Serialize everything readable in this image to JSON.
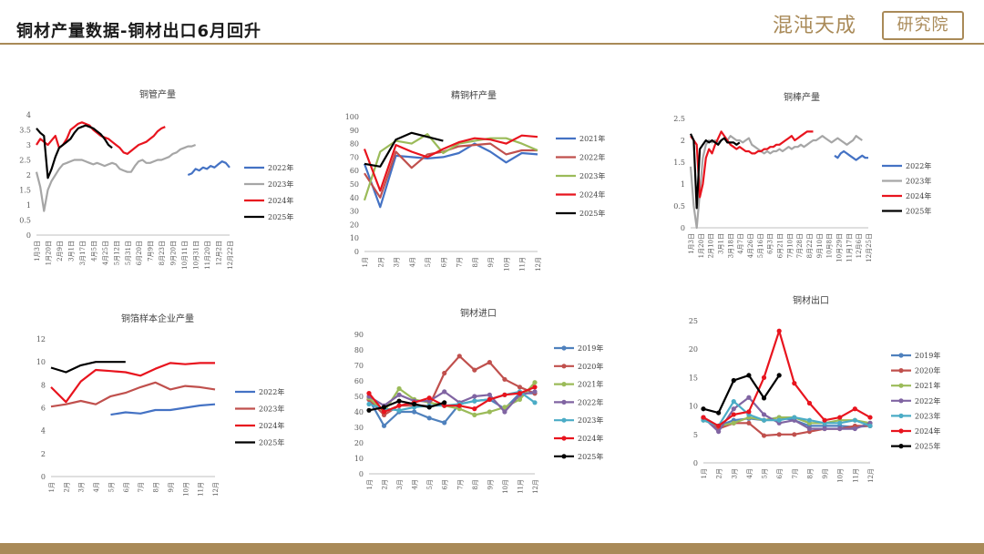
{
  "header": {
    "title": "铜材产量数据-铜材出口6月回升"
  },
  "logo": {
    "left_text": "混沌天成",
    "right_text": "研究院",
    "color": "#a98a58"
  },
  "chart_data": [
    {
      "id": "c1",
      "type": "line",
      "title": "铜管产量",
      "ylim": [
        0,
        4
      ],
      "yticks": [
        "0",
        "0.5",
        "1",
        "1.5",
        "2",
        "2.5",
        "3",
        "3.5",
        "4"
      ],
      "xlabels": [
        "1月3日",
        "1月20日",
        "2月9日",
        "3月1日",
        "3月17日",
        "4月5日",
        "4月25日",
        "5月12日",
        "5月31日",
        "6月20日",
        "7月9日",
        "8月23日",
        "9月20日",
        "10月11日",
        "10月31日",
        "11月20日",
        "12月2日",
        "12月22日"
      ],
      "legend": {
        "position": "right"
      },
      "series": [
        {
          "name": "2022年",
          "color": "#4472c4",
          "values": [
            null,
            null,
            null,
            null,
            null,
            null,
            null,
            null,
            null,
            null,
            null,
            null,
            null,
            null,
            null,
            null,
            null,
            null,
            null,
            null,
            null,
            null,
            null,
            null,
            null,
            null,
            null,
            null,
            null,
            null,
            null,
            null,
            null,
            null,
            null,
            null,
            null,
            null,
            null,
            null,
            2.0,
            2.05,
            2.2,
            2.15,
            2.25,
            2.2,
            2.3,
            2.25,
            2.35,
            2.45,
            2.4,
            2.25
          ]
        },
        {
          "name": "2023年",
          "color": "#a6a6a6",
          "values": [
            2.1,
            1.6,
            0.8,
            1.5,
            1.8,
            2.0,
            2.2,
            2.35,
            2.4,
            2.45,
            2.5,
            2.5,
            2.5,
            2.45,
            2.4,
            2.35,
            2.4,
            2.35,
            2.3,
            2.35,
            2.4,
            2.35,
            2.2,
            2.15,
            2.1,
            2.1,
            2.3,
            2.45,
            2.5,
            2.4,
            2.4,
            2.45,
            2.5,
            2.5,
            2.55,
            2.6,
            2.7,
            2.75,
            2.85,
            2.9,
            2.95,
            2.95,
            3.0
          ]
        },
        {
          "name": "2024年",
          "color": "#e8141e",
          "values": [
            3.0,
            3.2,
            3.1,
            3.0,
            3.15,
            3.3,
            2.9,
            3.0,
            3.2,
            3.5,
            3.6,
            3.7,
            3.75,
            3.7,
            3.65,
            3.5,
            3.4,
            3.3,
            3.25,
            3.2,
            3.1,
            3.0,
            2.9,
            2.75,
            2.7,
            2.8,
            2.9,
            3.0,
            3.05,
            3.1,
            3.2,
            3.3,
            3.45,
            3.55,
            3.6
          ]
        },
        {
          "name": "2025年",
          "color": "#000000",
          "values": [
            3.55,
            3.4,
            3.3,
            1.9,
            2.2,
            2.6,
            2.9,
            3.0,
            3.1,
            3.2,
            3.4,
            3.55,
            3.6,
            3.65,
            3.6,
            3.55,
            3.45,
            3.35,
            3.2,
            3.0,
            2.9
          ]
        }
      ]
    },
    {
      "id": "c2",
      "type": "line",
      "title": "精铜杆产量",
      "ylim": [
        0,
        100
      ],
      "yticks": [
        "0",
        "10",
        "20",
        "30",
        "40",
        "50",
        "60",
        "70",
        "80",
        "90",
        "100"
      ],
      "xlabels": [
        "1月",
        "2月",
        "3月",
        "4月",
        "5月",
        "6月",
        "7月",
        "8月",
        "9月",
        "10月",
        "11月",
        "12月"
      ],
      "legend": {
        "position": "right"
      },
      "series": [
        {
          "name": "2021年",
          "color": "#4472c4",
          "values": [
            65,
            33,
            71,
            70,
            69,
            70,
            73,
            80,
            74,
            66,
            73,
            72
          ]
        },
        {
          "name": "2022年",
          "color": "#c0504d",
          "values": [
            58,
            40,
            74,
            62,
            72,
            74,
            78,
            79,
            80,
            72,
            75,
            75
          ]
        },
        {
          "name": "2023年",
          "color": "#9bbb59",
          "values": [
            38,
            74,
            82,
            80,
            87,
            73,
            80,
            82,
            84,
            84,
            80,
            75
          ]
        },
        {
          "name": "2024年",
          "color": "#e8141e",
          "values": [
            76,
            45,
            79,
            74,
            70,
            76,
            81,
            84,
            83,
            80,
            86,
            85
          ]
        },
        {
          "name": "2025年",
          "color": "#000000",
          "values": [
            65,
            63,
            83,
            88,
            85,
            82
          ]
        }
      ]
    },
    {
      "id": "c3",
      "type": "line",
      "title": "铜棒产量",
      "ylim": [
        0,
        2.5
      ],
      "yticks": [
        "0",
        "0.5",
        "1",
        "1.5",
        "2",
        "2.5"
      ],
      "xlabels": [
        "1月3日",
        "1月20日",
        "2月10日",
        "3月1日",
        "3月18日",
        "4月7日",
        "4月26日",
        "5月16日",
        "6月3日",
        "6月21日",
        "7月10日",
        "7月28日",
        "8月22日",
        "9月10日",
        "10月8日",
        "10月29日",
        "11月17日",
        "12月6日",
        "12月25日"
      ],
      "legend": {
        "position": "right"
      },
      "series": [
        {
          "name": "2022年",
          "color": "#4472c4",
          "values": [
            null,
            null,
            null,
            null,
            null,
            null,
            null,
            null,
            null,
            null,
            null,
            null,
            null,
            null,
            null,
            null,
            null,
            null,
            null,
            null,
            null,
            null,
            null,
            null,
            null,
            null,
            null,
            null,
            null,
            null,
            null,
            null,
            null,
            null,
            null,
            null,
            null,
            null,
            null,
            null,
            null,
            null,
            null,
            null,
            null,
            null,
            null,
            1.65,
            1.6,
            1.7,
            1.75,
            1.7,
            1.65,
            1.6,
            1.55,
            1.6,
            1.65,
            1.6,
            1.6
          ]
        },
        {
          "name": "2023年",
          "color": "#a6a6a6",
          "values": [
            1.4,
            0.5,
            0.0,
            0.8,
            1.6,
            1.9,
            2.0,
            1.95,
            2.0,
            1.95,
            2.0,
            2.05,
            2.0,
            2.1,
            2.05,
            2.0,
            2.0,
            1.95,
            2.0,
            2.05,
            1.9,
            1.85,
            1.8,
            1.75,
            1.7,
            1.75,
            1.7,
            1.75,
            1.75,
            1.8,
            1.75,
            1.8,
            1.85,
            1.8,
            1.85,
            1.85,
            1.9,
            1.85,
            1.9,
            1.95,
            2.0,
            2.0,
            2.05,
            2.1,
            2.05,
            2.0,
            1.95,
            2.0,
            2.05,
            2.0,
            1.95,
            1.9,
            1.95,
            2.0,
            2.1,
            2.05,
            2.0
          ]
        },
        {
          "name": "2024年",
          "color": "#e8141e",
          "values": [
            2.1,
            2.0,
            1.9,
            0.7,
            1.0,
            1.6,
            1.8,
            1.7,
            1.9,
            2.05,
            2.2,
            2.1,
            2.0,
            1.9,
            1.85,
            1.8,
            1.85,
            1.8,
            1.75,
            1.75,
            1.7,
            1.7,
            1.75,
            1.75,
            1.8,
            1.8,
            1.85,
            1.85,
            1.9,
            1.9,
            1.95,
            2.0,
            2.05,
            2.1,
            2.0,
            2.05,
            2.1,
            2.15,
            2.2,
            2.2,
            2.2
          ]
        },
        {
          "name": "2025年",
          "color": "#000000",
          "values": [
            2.15,
            2.0,
            0.45,
            1.8,
            1.9,
            2.0,
            1.95,
            2.0,
            1.95,
            1.9,
            2.0,
            2.05,
            1.95,
            1.95,
            1.95,
            1.9,
            1.95
          ]
        }
      ]
    },
    {
      "id": "c4",
      "type": "line",
      "title": "铜箔样本企业产量",
      "ylim": [
        0,
        12
      ],
      "yticks": [
        "0",
        "2",
        "4",
        "6",
        "8",
        "10",
        "12"
      ],
      "xlabels": [
        "1月",
        "2月",
        "3月",
        "4月",
        "5月",
        "6月",
        "7月",
        "8月",
        "9月",
        "10月",
        "11月",
        "12月"
      ],
      "legend": {
        "position": "right"
      },
      "series": [
        {
          "name": "2022年",
          "color": "#4472c4",
          "values": [
            null,
            null,
            null,
            null,
            5.4,
            5.6,
            5.5,
            5.8,
            5.8,
            6.0,
            6.2,
            6.3
          ]
        },
        {
          "name": "2023年",
          "color": "#c0504d",
          "values": [
            6.1,
            6.3,
            6.6,
            6.3,
            7.0,
            7.3,
            7.8,
            8.2,
            7.6,
            7.9,
            7.8,
            7.6
          ]
        },
        {
          "name": "2024年",
          "color": "#e8141e",
          "values": [
            7.8,
            6.5,
            8.3,
            9.3,
            9.2,
            9.1,
            8.8,
            9.4,
            9.9,
            9.8,
            9.9,
            9.9
          ]
        },
        {
          "name": "2025年",
          "color": "#000000",
          "values": [
            9.5,
            9.1,
            9.7,
            10.0,
            10.0,
            10.0
          ]
        }
      ]
    },
    {
      "id": "c5",
      "type": "line",
      "title": "铜材进口",
      "markers": true,
      "ylim": [
        0,
        90
      ],
      "yticks": [
        "0",
        "10",
        "20",
        "30",
        "40",
        "50",
        "60",
        "70",
        "80",
        "90"
      ],
      "xlabels": [
        "1月",
        "2月",
        "3月",
        "4月",
        "5月",
        "6月",
        "7月",
        "8月",
        "9月",
        "10月",
        "11月",
        "12月"
      ],
      "legend": {
        "position": "right"
      },
      "series": [
        {
          "name": "2019年",
          "color": "#4f81bd",
          "values": [
            48,
            31,
            40,
            40,
            36,
            33,
            45,
            47,
            48,
            42,
            52,
            52
          ]
        },
        {
          "name": "2020年",
          "color": "#c0504d",
          "values": [
            48,
            38,
            44,
            44,
            44,
            65,
            76,
            67,
            72,
            61,
            56,
            52
          ]
        },
        {
          "name": "2021年",
          "color": "#9bbb59",
          "values": [
            49,
            40,
            55,
            48,
            46,
            44,
            42,
            38,
            40,
            43,
            48,
            59
          ]
        },
        {
          "name": "2022年",
          "color": "#8064a2",
          "values": [
            50,
            44,
            51,
            47,
            47,
            53,
            46,
            50,
            51,
            40,
            51,
            53
          ]
        },
        {
          "name": "2023年",
          "color": "#4bacc6",
          "values": [
            45,
            42,
            41,
            43,
            44,
            44,
            45,
            47,
            48,
            51,
            53,
            46
          ]
        },
        {
          "name": "2024年",
          "color": "#e8141e",
          "values": [
            52,
            40,
            44,
            46,
            49,
            44,
            44,
            42,
            48,
            51,
            52,
            56
          ]
        },
        {
          "name": "2025年",
          "color": "#000000",
          "values": [
            41,
            43,
            47,
            45,
            43,
            46
          ]
        }
      ]
    },
    {
      "id": "c6",
      "type": "line",
      "title": "铜材出口",
      "markers": true,
      "ylim": [
        0,
        25
      ],
      "yticks": [
        "0",
        "5",
        "10",
        "15",
        "20",
        "25"
      ],
      "xlabels": [
        "1月",
        "2月",
        "3月",
        "4月",
        "5月",
        "6月",
        "7月",
        "8月",
        "9月",
        "10月",
        "11月",
        "12月"
      ],
      "legend": {
        "position": "right"
      },
      "series": [
        {
          "name": "2019年",
          "color": "#4f81bd",
          "values": [
            7.8,
            6.5,
            7.5,
            7.8,
            7.5,
            8.0,
            7.5,
            6.5,
            6.5,
            6.5,
            6.3,
            6.5
          ]
        },
        {
          "name": "2020年",
          "color": "#c0504d",
          "values": [
            8.0,
            6.0,
            7.0,
            7.0,
            4.8,
            5.0,
            5.0,
            5.5,
            6.0,
            6.0,
            6.5,
            6.5
          ]
        },
        {
          "name": "2021年",
          "color": "#9bbb59",
          "values": [
            7.5,
            6.5,
            7.0,
            8.0,
            7.5,
            8.0,
            8.0,
            7.0,
            7.0,
            7.5,
            7.5,
            7.0
          ]
        },
        {
          "name": "2022年",
          "color": "#8064a2",
          "values": [
            8.0,
            5.5,
            9.5,
            11.5,
            8.5,
            7.0,
            7.5,
            6.0,
            6.0,
            6.0,
            6.0,
            7.0
          ]
        },
        {
          "name": "2023年",
          "color": "#4bacc6",
          "values": [
            7.5,
            6.5,
            10.8,
            8.5,
            7.5,
            7.5,
            8.0,
            7.5,
            7.0,
            7.0,
            7.5,
            6.5
          ]
        },
        {
          "name": "2024年",
          "color": "#e8141e",
          "values": [
            8.0,
            6.5,
            8.5,
            9.0,
            15.0,
            23.2,
            14.0,
            10.5,
            7.5,
            8.0,
            9.5,
            8.0
          ]
        },
        {
          "name": "2025年",
          "color": "#000000",
          "values": [
            9.5,
            8.8,
            14.5,
            15.4,
            11.4,
            15.4
          ]
        }
      ]
    }
  ]
}
